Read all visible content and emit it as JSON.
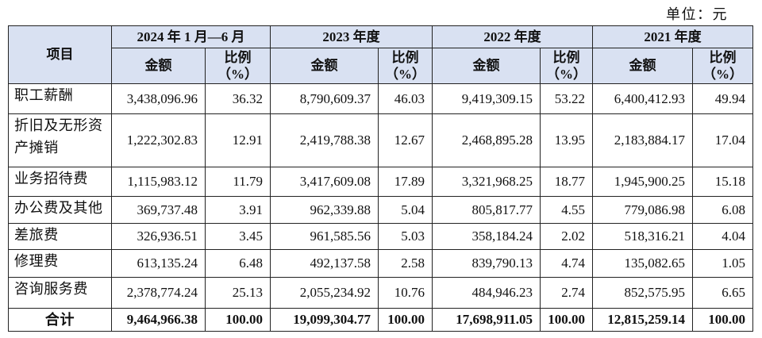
{
  "unit_label": "单位：元",
  "theme": {
    "header_fill": "#d9e1f2"
  },
  "table": {
    "item_header": "项目",
    "periods": [
      {
        "label": "2024 年 1 月—6 月",
        "amount_header": "金额",
        "ratio_header": "比例",
        "ratio_unit": "（%）"
      },
      {
        "label": "2023 年度",
        "amount_header": "金额",
        "ratio_header": "比例",
        "ratio_unit": "（%）"
      },
      {
        "label": "2022 年度",
        "amount_header": "金额",
        "ratio_header": "比例",
        "ratio_unit": "（%）"
      },
      {
        "label": "2021 年度",
        "amount_header": "金额",
        "ratio_header": "比例",
        "ratio_unit": "（%）"
      }
    ],
    "rows": [
      {
        "item": "职工薪酬",
        "cells": [
          {
            "amount": "3,438,096.96",
            "ratio": "36.32"
          },
          {
            "amount": "8,790,609.37",
            "ratio": "46.03"
          },
          {
            "amount": "9,419,309.15",
            "ratio": "53.22"
          },
          {
            "amount": "6,400,412.93",
            "ratio": "49.94"
          }
        ]
      },
      {
        "item": "折旧及无形资产摊销",
        "cells": [
          {
            "amount": "1,222,302.83",
            "ratio": "12.91"
          },
          {
            "amount": "2,419,788.38",
            "ratio": "12.67"
          },
          {
            "amount": "2,468,895.28",
            "ratio": "13.95"
          },
          {
            "amount": "2,183,884.17",
            "ratio": "17.04"
          }
        ]
      },
      {
        "item": "业务招待费",
        "cells": [
          {
            "amount": "1,115,983.12",
            "ratio": "11.79"
          },
          {
            "amount": "3,417,609.08",
            "ratio": "17.89"
          },
          {
            "amount": "3,321,968.25",
            "ratio": "18.77"
          },
          {
            "amount": "1,945,900.25",
            "ratio": "15.18"
          }
        ]
      },
      {
        "item": "办公费及其他",
        "cells": [
          {
            "amount": "369,737.48",
            "ratio": "3.91"
          },
          {
            "amount": "962,339.88",
            "ratio": "5.04"
          },
          {
            "amount": "805,817.77",
            "ratio": "4.55"
          },
          {
            "amount": "779,086.98",
            "ratio": "6.08"
          }
        ]
      },
      {
        "item": "差旅费",
        "cells": [
          {
            "amount": "326,936.51",
            "ratio": "3.45"
          },
          {
            "amount": "961,585.56",
            "ratio": "5.03"
          },
          {
            "amount": "358,184.24",
            "ratio": "2.02"
          },
          {
            "amount": "518,316.21",
            "ratio": "4.04"
          }
        ]
      },
      {
        "item": "修理费",
        "cells": [
          {
            "amount": "613,135.24",
            "ratio": "6.48"
          },
          {
            "amount": "492,137.58",
            "ratio": "2.58"
          },
          {
            "amount": "839,790.13",
            "ratio": "4.74"
          },
          {
            "amount": "135,082.65",
            "ratio": "1.05"
          }
        ]
      },
      {
        "item": "咨询服务费",
        "cells": [
          {
            "amount": "2,378,774.24",
            "ratio": "25.13"
          },
          {
            "amount": "2,055,234.92",
            "ratio": "10.76"
          },
          {
            "amount": "484,946.23",
            "ratio": "2.74"
          },
          {
            "amount": "852,575.95",
            "ratio": "6.65"
          }
        ]
      }
    ],
    "total": {
      "item": "合计",
      "cells": [
        {
          "amount": "9,464,966.38",
          "ratio": "100.00"
        },
        {
          "amount": "19,099,304.77",
          "ratio": "100.00"
        },
        {
          "amount": "17,698,911.05",
          "ratio": "100.00"
        },
        {
          "amount": "12,815,259.14",
          "ratio": "100.00"
        }
      ]
    }
  }
}
